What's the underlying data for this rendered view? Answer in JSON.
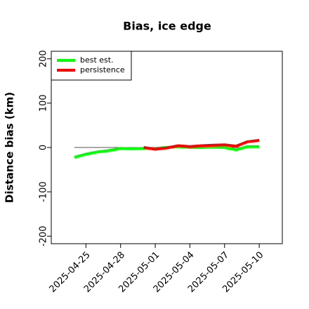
{
  "chart_data": {
    "type": "line",
    "title": "Bias, ice edge",
    "y_label": "Distance bias (km)",
    "x": [
      "2025-04-24",
      "2025-04-25",
      "2025-04-26",
      "2025-04-27",
      "2025-04-28",
      "2025-04-29",
      "2025-04-30",
      "2025-05-01",
      "2025-05-02",
      "2025-05-03",
      "2025-05-04",
      "2025-05-05",
      "2025-05-06",
      "2025-05-07",
      "2025-05-08",
      "2025-05-09",
      "2025-05-10"
    ],
    "series": [
      {
        "name": "best est.",
        "color": "#00ff00",
        "values": [
          -22,
          -15,
          -10,
          -7,
          -2,
          -3,
          -2,
          -2,
          0,
          2,
          0,
          0,
          1,
          0,
          -5,
          2,
          2
        ]
      },
      {
        "name": "persistence",
        "color": "#ff0000",
        "values": [
          null,
          null,
          null,
          null,
          null,
          null,
          0,
          -4,
          -1,
          4,
          2,
          4,
          5,
          6,
          3,
          13,
          16
        ]
      }
    ],
    "hline": 0,
    "xlim": [
      "2025-04-22",
      "2025-05-12"
    ],
    "xticks": [
      "2025-04-25",
      "2025-04-28",
      "2025-05-01",
      "2025-05-04",
      "2025-05-07",
      "2025-05-10"
    ],
    "ylim": [
      -217,
      217
    ],
    "yticks": [
      -200,
      -100,
      0,
      100,
      200
    ],
    "legend": "top-left"
  }
}
